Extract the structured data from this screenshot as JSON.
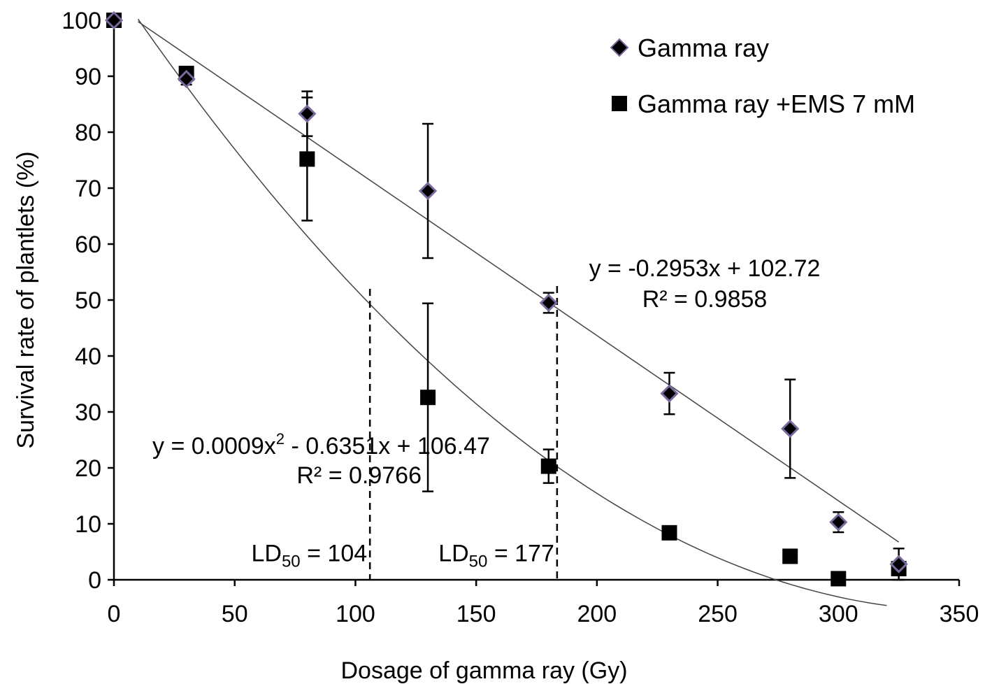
{
  "chart_data": {
    "type": "scatter",
    "xlabel": "Dosage of gamma ray (Gy)",
    "ylabel": "Survival rate of plantlets  (%)",
    "xlim": [
      0,
      350
    ],
    "ylim": [
      0,
      100
    ],
    "xticks": [
      0,
      50,
      100,
      150,
      200,
      250,
      300,
      350
    ],
    "yticks": [
      0,
      10,
      20,
      30,
      40,
      50,
      60,
      70,
      80,
      90,
      100
    ],
    "grid": false,
    "legend_position": "top-right",
    "series": [
      {
        "name": "Gamma ray",
        "marker": "diamond",
        "color": "#000000",
        "edge_color": "#7a6a9e",
        "points": [
          {
            "x": 0,
            "y": 100,
            "err": 0
          },
          {
            "x": 30,
            "y": 89.5,
            "err": 1
          },
          {
            "x": 80,
            "y": 83.3,
            "err": 4
          },
          {
            "x": 130,
            "y": 69.5,
            "err": 12
          },
          {
            "x": 180,
            "y": 49.5,
            "err": 1.8
          },
          {
            "x": 230,
            "y": 33.3,
            "err": 3.7
          },
          {
            "x": 280,
            "y": 27,
            "err": 8.8
          },
          {
            "x": 300,
            "y": 10.3,
            "err": 1.8
          },
          {
            "x": 325,
            "y": 2.8,
            "err": 2.8
          }
        ],
        "trendline": {
          "kind": "linear",
          "a": -0.2953,
          "b": 102.72,
          "x_from": 10,
          "x_to": 325
        },
        "equation": "y = -0.2953x + 102.72",
        "r2": "R² = 0.9858"
      },
      {
        "name": "Gamma ray +EMS 7 mM",
        "marker": "square",
        "color": "#000000",
        "points": [
          {
            "x": 0,
            "y": 100,
            "err": 0
          },
          {
            "x": 30,
            "y": 90.5,
            "err": 0
          },
          {
            "x": 80,
            "y": 75.2,
            "err": 11
          },
          {
            "x": 130,
            "y": 32.6,
            "err": 16.8
          },
          {
            "x": 180,
            "y": 20.3,
            "err": 3
          },
          {
            "x": 230,
            "y": 8.4,
            "err": 0
          },
          {
            "x": 280,
            "y": 4.2,
            "err": 0
          },
          {
            "x": 300,
            "y": 0.2,
            "err": 0
          },
          {
            "x": 325,
            "y": 2,
            "err": 0
          }
        ],
        "trendline": {
          "kind": "quadratic",
          "a": 0.0009,
          "b": -0.6351,
          "c": 106.47,
          "x_from": 10,
          "x_to": 320
        },
        "equation_main": "y = 0.0009x",
        "equation_sup": "2",
        "equation_rest": " - 0.6351x + 106.47",
        "r2": "R² = 0.9766"
      }
    ],
    "ld50_lines": [
      {
        "x": 106,
        "y_top": 52,
        "label_main": "LD",
        "label_sub": "50",
        "label_rest": " = 104"
      },
      {
        "x": 183.5,
        "y_top": 52.5,
        "label_main": "LD",
        "label_sub": "50",
        "label_rest": " = 177"
      }
    ]
  }
}
